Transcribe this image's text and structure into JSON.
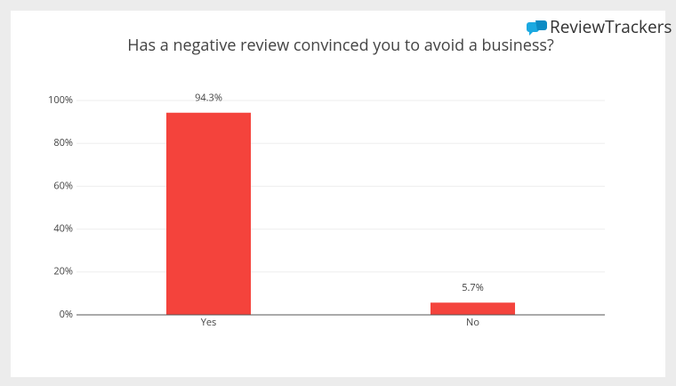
{
  "brand": "ReviewTrackers",
  "chart_data": {
    "type": "bar",
    "title": "Has a negative review convinced you to avoid a business?",
    "categories": [
      "Yes",
      "No"
    ],
    "values": [
      94.3,
      5.7
    ],
    "value_labels": [
      "94.3%",
      "5.7%"
    ],
    "color": "#f4433c",
    "ylim": [
      0,
      100
    ],
    "yticks": [
      {
        "value": 0,
        "label": "0%"
      },
      {
        "value": 20,
        "label": "20%"
      },
      {
        "value": 40,
        "label": "40%"
      },
      {
        "value": 60,
        "label": "60%"
      },
      {
        "value": 80,
        "label": "80%"
      },
      {
        "value": 100,
        "label": "100%"
      }
    ],
    "grid": true
  }
}
